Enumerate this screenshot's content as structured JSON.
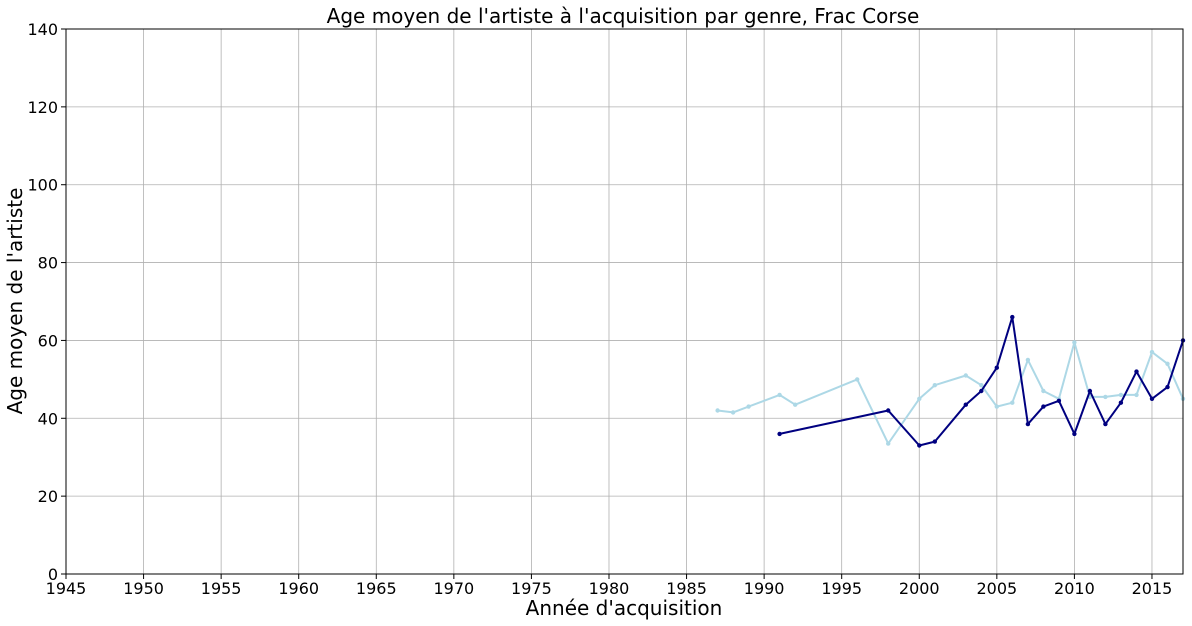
{
  "chart_data": {
    "type": "line",
    "title": "Age moyen de l'artiste à l'acquisition par genre, Frac Corse",
    "xlabel": "Année d'acquisition",
    "ylabel": "Age moyen de l'artiste",
    "xlim": [
      1945,
      2017
    ],
    "ylim": [
      0,
      140
    ],
    "x_ticks": [
      1945,
      1950,
      1955,
      1960,
      1965,
      1970,
      1975,
      1980,
      1985,
      1990,
      1995,
      2000,
      2005,
      2010,
      2015
    ],
    "y_ticks": [
      0,
      20,
      40,
      60,
      80,
      100,
      120,
      140
    ],
    "grid": true,
    "legend": "none",
    "series": [
      {
        "color": "#add8e6",
        "x": [
          1987,
          1988,
          1989,
          1991,
          1992,
          1996,
          1998,
          2000,
          2001,
          2003,
          2004,
          2005,
          2006,
          2007,
          2008,
          2009,
          2010,
          2011,
          2012,
          2013,
          2014,
          2015,
          2016,
          2017
        ],
        "y": [
          42,
          41.5,
          43,
          46,
          43.5,
          50,
          33.5,
          45,
          48.5,
          51,
          48.5,
          43,
          44,
          55,
          47,
          45,
          59.5,
          45.5,
          45.5,
          46,
          46,
          57,
          54,
          45
        ]
      },
      {
        "color": "#000080",
        "x": [
          1991,
          1998,
          2000,
          2001,
          2003,
          2004,
          2005,
          2006,
          2007,
          2008,
          2009,
          2010,
          2011,
          2012,
          2013,
          2014,
          2015,
          2016,
          2017
        ],
        "y": [
          36,
          42,
          33,
          34,
          43.5,
          47,
          53,
          66,
          38.5,
          43,
          44.5,
          36,
          47,
          38.5,
          44,
          52,
          45,
          48,
          60
        ]
      }
    ]
  }
}
